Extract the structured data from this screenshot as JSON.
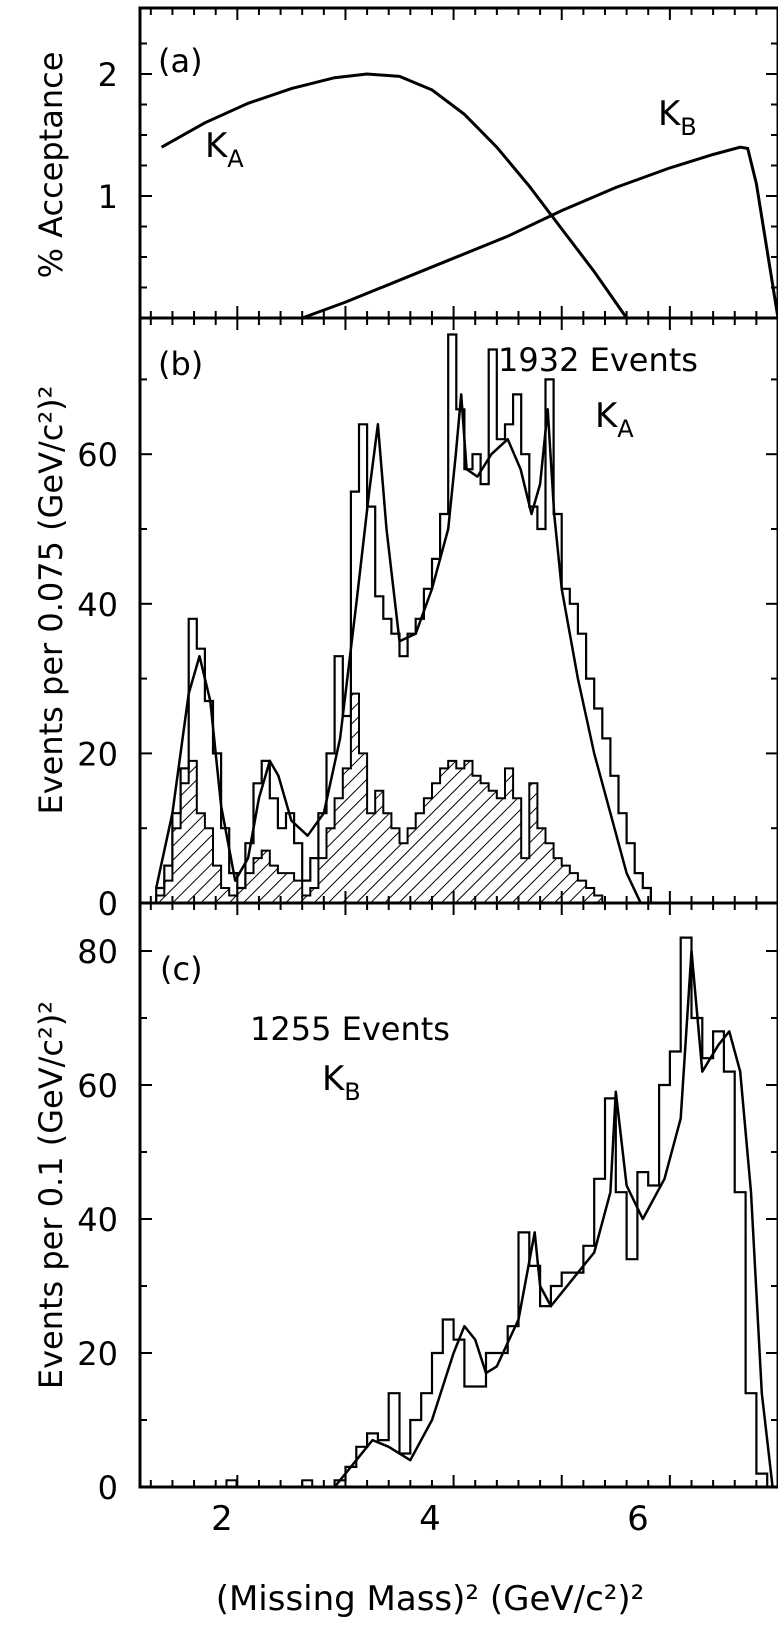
{
  "figure": {
    "xlabel": "(Missing Mass)² (GeV/c²)²",
    "x_ticks": [
      "2",
      "4",
      "6"
    ]
  },
  "chart_data": [
    {
      "panel_label": "(a)",
      "type": "line",
      "ylabel": "% Acceptance",
      "y_ticks": [
        "1",
        "2"
      ],
      "xlim": [
        1.1,
        7.0
      ],
      "ylim": [
        0,
        2.5
      ],
      "series": [
        {
          "name": "K_A",
          "label_main": "K",
          "label_sub": "A",
          "x": [
            1.3,
            1.7,
            2.1,
            2.5,
            2.9,
            3.2,
            3.5,
            3.8,
            4.1,
            4.4,
            4.7,
            5.0,
            5.3,
            5.6
          ],
          "y": [
            1.4,
            1.6,
            1.76,
            1.88,
            1.97,
            2.0,
            1.98,
            1.87,
            1.67,
            1.4,
            1.08,
            0.73,
            0.38,
            0.0
          ]
        },
        {
          "name": "K_B",
          "label_main": "K",
          "label_sub": "B",
          "x": [
            2.6,
            3.0,
            3.5,
            4.0,
            4.5,
            5.0,
            5.5,
            6.0,
            6.4,
            6.65,
            6.72,
            6.8,
            6.9,
            7.0
          ],
          "y": [
            0.0,
            0.13,
            0.31,
            0.49,
            0.67,
            0.88,
            1.07,
            1.23,
            1.34,
            1.4,
            1.39,
            1.1,
            0.55,
            0.0
          ]
        }
      ]
    },
    {
      "panel_label": "(b)",
      "type": "bar",
      "ylabel": "Events per 0.075 (GeV/c²)²",
      "y_ticks": [
        "0",
        "20",
        "40",
        "60"
      ],
      "annotation": "1932 Events",
      "channel_main": "K",
      "channel_sub": "A",
      "xlim": [
        1.1,
        7.0
      ],
      "ylim": [
        0,
        80
      ],
      "bin_width": 0.075,
      "bin_start": 1.25,
      "series": [
        {
          "name": "all",
          "values": [
            2,
            5,
            12,
            18,
            38,
            34,
            27,
            20,
            10,
            4,
            2,
            8,
            16,
            19,
            14,
            10,
            12,
            8,
            3,
            6,
            12,
            20,
            33,
            25,
            55,
            64,
            53,
            41,
            38,
            36,
            33,
            36,
            38,
            42,
            46,
            52,
            76,
            66,
            58,
            60,
            56,
            74,
            62,
            64,
            68,
            60,
            53,
            50,
            70,
            52,
            42,
            40,
            36,
            30,
            26,
            22,
            17,
            12,
            8,
            4,
            2,
            0
          ]
        },
        {
          "name": "hatched",
          "values": [
            1,
            3,
            10,
            16,
            19,
            12,
            10,
            5,
            2,
            1,
            2,
            4,
            6,
            7,
            5,
            4,
            4,
            3,
            1,
            2,
            6,
            10,
            14,
            18,
            28,
            20,
            12,
            15,
            12,
            10,
            8,
            10,
            12,
            14,
            16,
            18,
            19,
            18,
            19,
            17,
            16,
            15,
            14,
            18,
            14,
            6,
            16,
            10,
            8,
            6,
            5,
            4,
            3,
            2,
            1,
            0
          ]
        },
        {
          "name": "fit",
          "x": [
            1.25,
            1.4,
            1.55,
            1.65,
            1.75,
            1.85,
            1.98,
            2.1,
            2.2,
            2.3,
            2.38,
            2.5,
            2.65,
            2.8,
            2.95,
            3.1,
            3.22,
            3.3,
            3.38,
            3.5,
            3.65,
            3.8,
            3.95,
            4.02,
            4.07,
            4.12,
            4.22,
            4.35,
            4.5,
            4.62,
            4.72,
            4.8,
            4.87,
            4.93,
            5.0,
            5.15,
            5.3,
            5.45,
            5.6,
            5.73
          ],
          "y": [
            2,
            12,
            28,
            33,
            27,
            13,
            3,
            6,
            14,
            19,
            17,
            11,
            9,
            12,
            22,
            40,
            55,
            64,
            50,
            35,
            36,
            42,
            50,
            60,
            68,
            58,
            57,
            60,
            62,
            58,
            52,
            56,
            66,
            52,
            42,
            30,
            20,
            12,
            4,
            0
          ]
        }
      ]
    },
    {
      "panel_label": "(c)",
      "type": "bar",
      "ylabel": "Events per 0.1 (GeV/c²)²",
      "y_ticks": [
        "0",
        "20",
        "40",
        "60",
        "80"
      ],
      "annotation": "1255 Events",
      "channel_main": "K",
      "channel_sub": "B",
      "xlim": [
        1.1,
        7.0
      ],
      "ylim": [
        0,
        85
      ],
      "series": [
        {
          "name": "histogram",
          "x_start": 2.9,
          "bin_width": 0.1,
          "values": [
            1,
            3,
            6,
            8,
            7,
            14,
            5,
            10,
            14,
            20,
            25,
            22,
            15,
            15,
            20,
            20,
            24,
            38,
            33,
            27,
            30,
            32,
            32,
            36,
            46,
            58,
            44,
            34,
            47,
            45,
            60,
            65,
            82,
            70,
            64,
            68,
            62,
            44,
            14,
            2,
            0
          ]
        },
        {
          "name": "isolated_bins",
          "x": [
            1.9,
            2.6
          ],
          "values": [
            1,
            1
          ]
        },
        {
          "name": "fit",
          "x": [
            2.9,
            3.1,
            3.25,
            3.4,
            3.6,
            3.8,
            4.0,
            4.1,
            4.2,
            4.3,
            4.4,
            4.6,
            4.75,
            4.8,
            4.9,
            5.1,
            5.3,
            5.45,
            5.5,
            5.6,
            5.75,
            5.95,
            6.1,
            6.2,
            6.3,
            6.45,
            6.55,
            6.65,
            6.75,
            6.85,
            6.95
          ],
          "y": [
            0,
            4,
            7,
            6,
            4,
            10,
            20,
            24,
            22,
            17,
            18,
            25,
            38,
            30,
            27,
            31,
            35,
            44,
            59,
            45,
            40,
            46,
            55,
            80,
            62,
            66,
            68,
            62,
            44,
            14,
            0
          ]
        }
      ]
    }
  ]
}
